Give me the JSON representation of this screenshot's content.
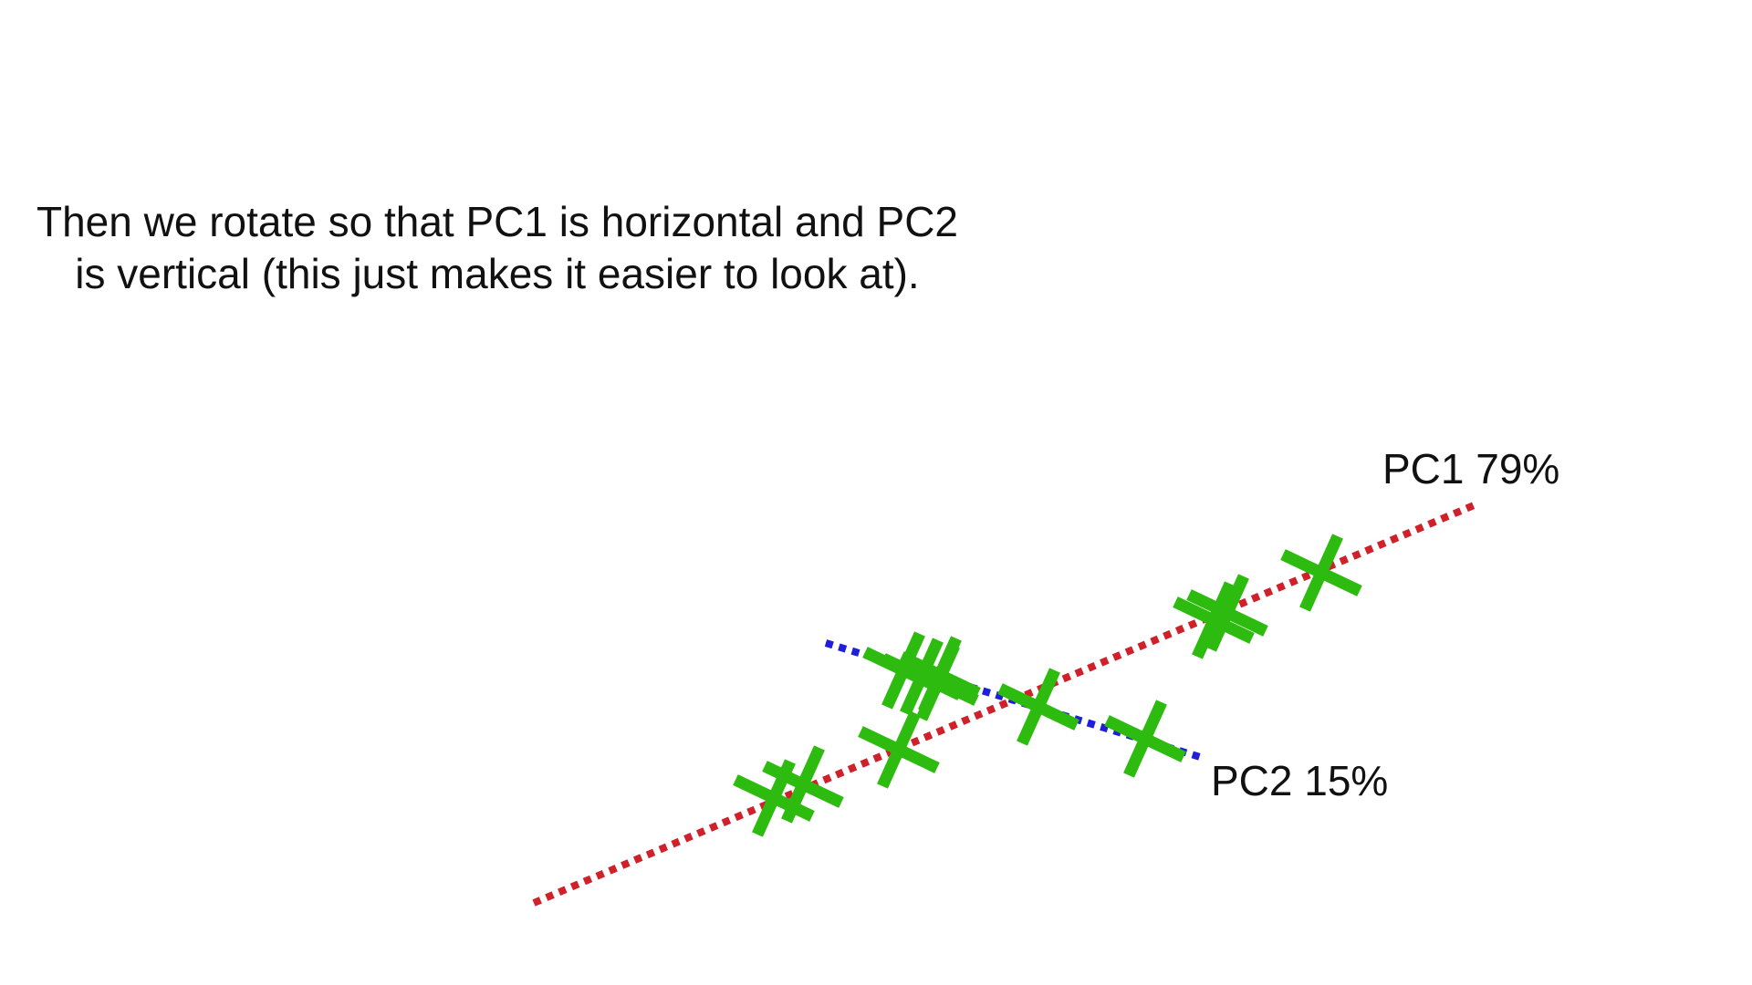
{
  "caption": "Then we rotate so that PC1 is horizontal and PC2 is vertical (this just makes it easier to look at).",
  "pc1": {
    "label": "PC1 79%",
    "color": "#d0202a"
  },
  "pc2": {
    "label": "PC2 15%",
    "color": "#1f1fd8"
  },
  "marker": {
    "shape": "x-mark",
    "color": "#2dbb10",
    "count": 11
  }
}
